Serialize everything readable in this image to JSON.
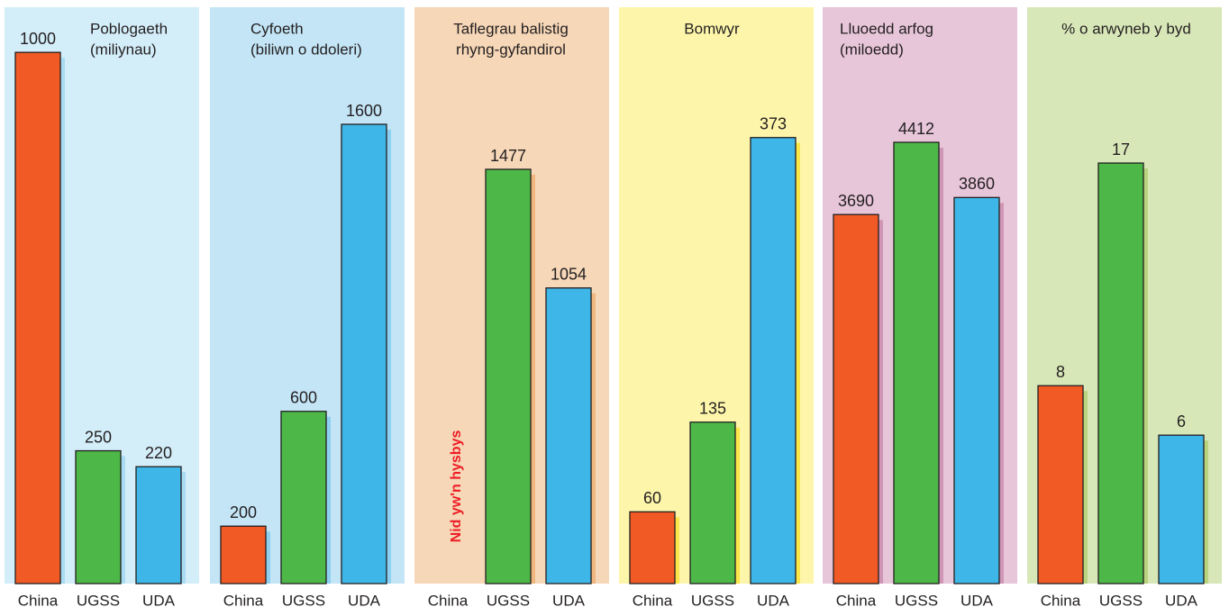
{
  "chart_data": [
    {
      "type": "bar",
      "title": [
        "Poblogaeth",
        "(miliynau)"
      ],
      "categories": [
        "China",
        "UGSS",
        "UDA"
      ],
      "values": [
        1000,
        250,
        220
      ],
      "colors": [
        "#f15a24",
        "#4db848",
        "#3fb6e8"
      ],
      "background": "#d3edf9",
      "shadow_color": "#a9dcf3",
      "ylim": [
        0,
        1085
      ]
    },
    {
      "type": "bar",
      "title": [
        "Cyfoeth",
        "(biliwn o ddoleri)"
      ],
      "categories": [
        "China",
        "UGSS",
        "UDA"
      ],
      "values": [
        200,
        600,
        1600
      ],
      "colors": [
        "#f15a24",
        "#4db848",
        "#3fb6e8"
      ],
      "background": "#c3e5f6",
      "shadow_color": "#8fd0f0",
      "ylim": [
        0,
        2008
      ]
    },
    {
      "type": "bar",
      "title": [
        "Taflegrau balistig",
        "rhyng-gyfandirol"
      ],
      "categories": [
        "China",
        "UGSS",
        "UDA"
      ],
      "values": [
        null,
        1477,
        1054
      ],
      "colors": [
        "#f15a24",
        "#4db848",
        "#3fb6e8"
      ],
      "background": "#f6d7b7",
      "shadow_color": "#efb67f",
      "ylim": [
        0,
        2055
      ],
      "annotation": "Nid yw'n hysbys"
    },
    {
      "type": "bar",
      "title": [
        "Bomwyr"
      ],
      "categories": [
        "China",
        "UGSS",
        "UDA"
      ],
      "values": [
        60,
        135,
        373
      ],
      "colors": [
        "#f15a24",
        "#4db848",
        "#3fb6e8"
      ],
      "background": "#fdf6aa",
      "shadow_color": "#fbe54a",
      "ylim": [
        0,
        482
      ]
    },
    {
      "type": "bar",
      "title": [
        "Lluoedd arfog",
        "(miloedd)"
      ],
      "categories": [
        "China",
        "UGSS",
        "UDA"
      ],
      "values": [
        3690,
        4412,
        3860
      ],
      "colors": [
        "#f15a24",
        "#4db848",
        "#3fb6e8"
      ],
      "background": "#e7c6d9",
      "shadow_color": "#cf96b6",
      "ylim": [
        0,
        5763
      ]
    },
    {
      "type": "bar",
      "title": [
        "% o arwyneb y byd"
      ],
      "categories": [
        "China",
        "UGSS",
        "UDA"
      ],
      "values": [
        8,
        17,
        6
      ],
      "colors": [
        "#f15a24",
        "#4db848",
        "#3fb6e8"
      ],
      "background": "#d8e7b8",
      "shadow_color": "#b9d47e",
      "ylim": [
        0,
        23.3
      ]
    }
  ]
}
